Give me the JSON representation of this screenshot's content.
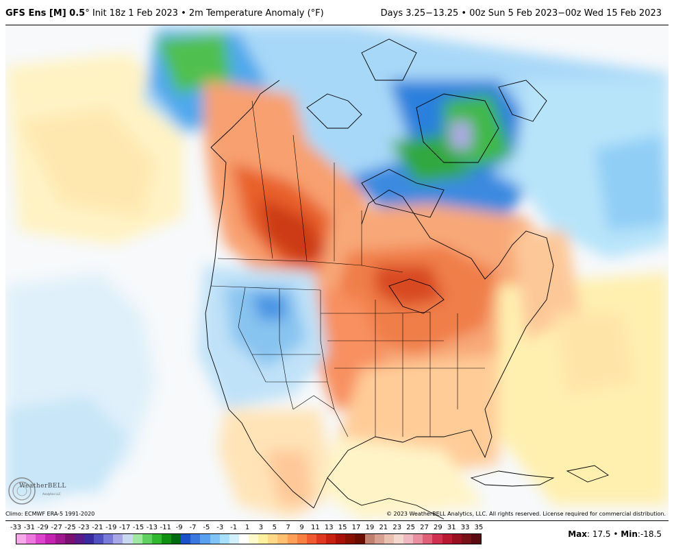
{
  "header": {
    "model": "GFS Ens [M] 0.5",
    "deg": "°",
    "init": "Init 18z 1 Feb 2023",
    "bullet": "•",
    "variable": "2m Temperature Anomaly (°F)",
    "range": "Days 3.25−13.25 • 00z Sun 5 Feb 2023−00z Wed 15 Feb 2023"
  },
  "footer": {
    "climo": "Climo: ECMWF ERA-5 1991-2020",
    "copyright": "© 2023 WeatherBELL Analytics, LLC. All rights reserved. License required for commercial distribution.",
    "max_label": "Max",
    "max_value": "17.5",
    "min_label": "Min",
    "min_value": "-18.5",
    "separator": "•"
  },
  "logo": {
    "name": "WeatherBELL",
    "sub": "Analytics LLC"
  },
  "colorbar": {
    "ticks": [
      "-33",
      "-31",
      "-29",
      "-27",
      "-25",
      "-23",
      "-21",
      "-19",
      "-17",
      "-15",
      "-13",
      "-11",
      "-9",
      "-7",
      "-5",
      "-3",
      "-1",
      "1",
      "3",
      "5",
      "7",
      "9",
      "11",
      "13",
      "15",
      "17",
      "19",
      "21",
      "23",
      "25",
      "27",
      "29",
      "31",
      "33",
      "35"
    ],
    "colors": [
      "#f7a8e8",
      "#ee77dd",
      "#dd44cc",
      "#c422b0",
      "#a01890",
      "#7a1070",
      "#5a1a8a",
      "#3a2aa0",
      "#5050c0",
      "#7a7ad8",
      "#a8a8e8",
      "#c8d8f0",
      "#a0e8a0",
      "#60d060",
      "#30b830",
      "#109010",
      "#006a10",
      "#1a50c8",
      "#3a78e0",
      "#5aa0f0",
      "#80c4f8",
      "#a8e0fc",
      "#d0f0fc",
      "#ffffff",
      "#fffacc",
      "#fff0a0",
      "#ffd888",
      "#ffc070",
      "#ffa058",
      "#f88040",
      "#f05a30",
      "#e03820",
      "#c82010",
      "#a81008",
      "#881000",
      "#6a0c00",
      "#c08070",
      "#d8a090",
      "#eac0b0",
      "#f4d8d0",
      "#f0b8c0",
      "#e890a0",
      "#e06078",
      "#d03050",
      "#b81830",
      "#981020",
      "#781018",
      "#5a0a10"
    ]
  }
}
